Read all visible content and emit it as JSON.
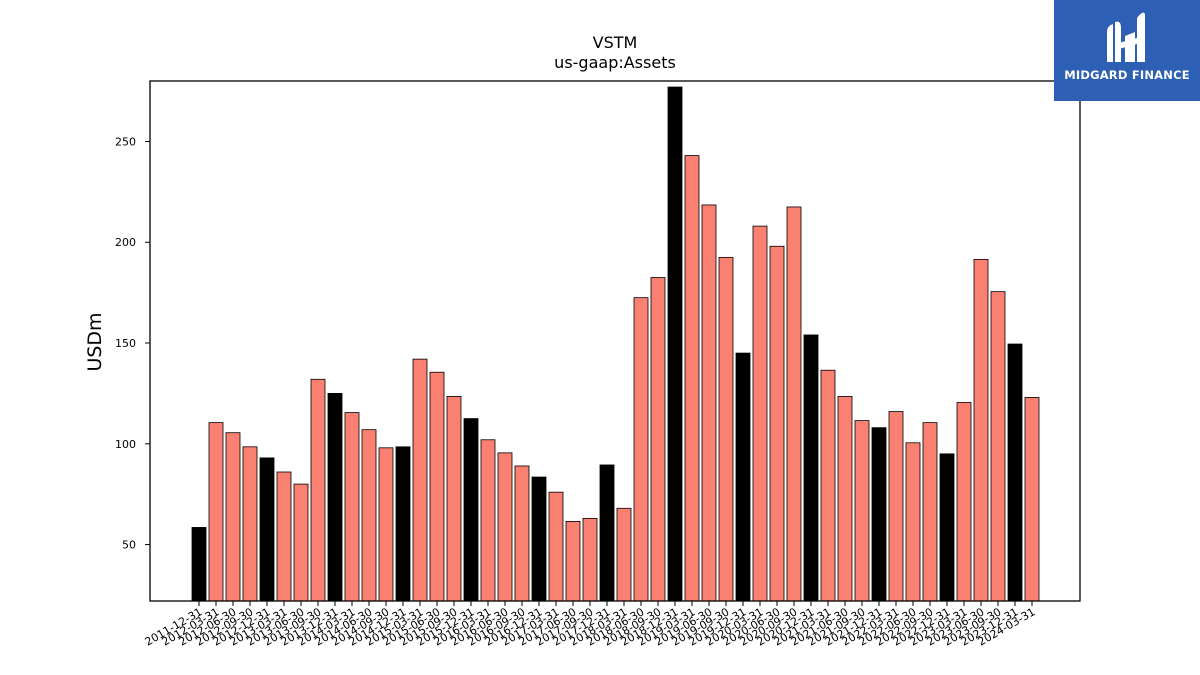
{
  "chart_data": {
    "type": "bar",
    "title": "VSTM",
    "subtitle": "us-gaap:Assets",
    "xlabel": "",
    "ylabel": "USDm",
    "ylim": [
      22,
      280
    ],
    "yticks": [
      50,
      100,
      150,
      200,
      250
    ],
    "grid": false,
    "colors": {
      "annual": "#000000",
      "quarterly": "#fa8072",
      "edge": "#000000"
    },
    "categories": [
      "2011-12-31",
      "2012-03-31",
      "2012-06-30",
      "2012-09-30",
      "2012-12-31",
      "2013-03-31",
      "2013-06-30",
      "2013-09-30",
      "2013-12-31",
      "2014-03-31",
      "2014-06-30",
      "2014-09-30",
      "2014-12-31",
      "2015-03-31",
      "2015-06-30",
      "2015-09-30",
      "2015-12-31",
      "2016-03-31",
      "2016-06-30",
      "2016-09-30",
      "2016-12-31",
      "2017-03-31",
      "2017-06-30",
      "2017-09-30",
      "2017-12-31",
      "2018-03-31",
      "2018-06-30",
      "2018-09-30",
      "2018-12-31",
      "2019-03-31",
      "2019-06-30",
      "2019-09-30",
      "2019-12-31",
      "2020-03-31",
      "2020-06-30",
      "2020-09-30",
      "2020-12-31",
      "2021-03-31",
      "2021-06-30",
      "2021-09-30",
      "2021-12-31",
      "2022-03-31",
      "2022-06-30",
      "2022-09-30",
      "2022-12-31",
      "2023-03-31",
      "2023-06-30",
      "2023-09-30",
      "2023-12-31",
      "2024-03-31"
    ],
    "values": [
      58.5,
      110.5,
      105.5,
      98.5,
      93,
      86,
      80,
      132,
      125,
      115.5,
      107,
      98,
      98.5,
      142,
      135.5,
      123.5,
      112.5,
      102,
      95.5,
      89,
      83.5,
      76,
      61.5,
      63,
      89.5,
      68,
      172.5,
      182.5,
      277,
      243,
      218.5,
      192.5,
      145,
      208,
      198,
      217.5,
      154,
      136.5,
      123.5,
      111.5,
      108,
      116,
      100.5,
      110.5,
      95,
      120.5,
      191.5,
      175.5,
      149.5,
      123
    ],
    "annual": [
      true,
      false,
      false,
      false,
      true,
      false,
      false,
      false,
      true,
      false,
      false,
      false,
      true,
      false,
      false,
      false,
      true,
      false,
      false,
      false,
      true,
      false,
      false,
      false,
      true,
      false,
      false,
      false,
      true,
      false,
      false,
      false,
      true,
      false,
      false,
      false,
      true,
      false,
      false,
      false,
      true,
      false,
      false,
      false,
      true,
      false,
      false,
      false,
      true,
      false
    ]
  },
  "logo": {
    "text": "MIDGARD FINANCE",
    "color": "#2d5fb5"
  }
}
